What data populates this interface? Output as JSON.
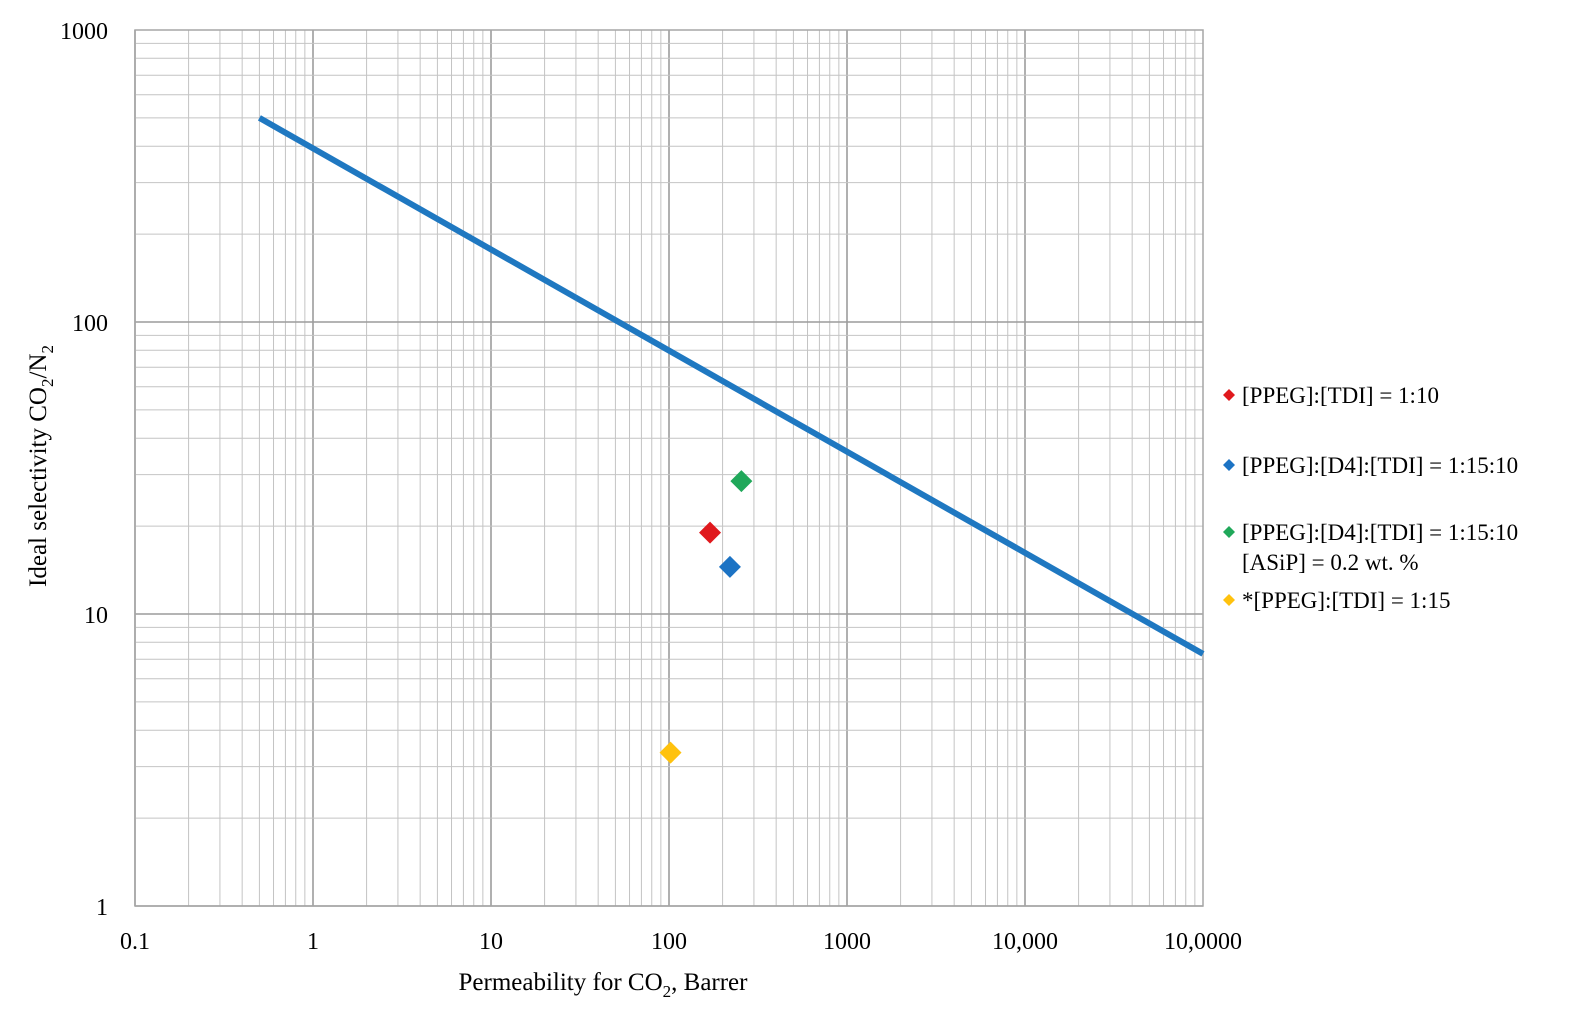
{
  "chart_data": {
    "type": "scatter",
    "title": "",
    "xlabel": {
      "prefix": "Permeability for CO",
      "sub": "2",
      "suffix": ", Barrer"
    },
    "ylabel": {
      "parts": [
        {
          "text": "Ideal selectivity CO",
          "sub": false
        },
        {
          "text": "2",
          "sub": true
        },
        {
          "text": "/N",
          "sub": false
        },
        {
          "text": "2",
          "sub": true
        }
      ]
    },
    "x_scale": "log",
    "y_scale": "log",
    "xlim": [
      0.1,
      100000
    ],
    "ylim": [
      1,
      1000
    ],
    "x_ticks": [
      {
        "value": 0.1,
        "label": "0.1"
      },
      {
        "value": 1,
        "label": "1"
      },
      {
        "value": 10,
        "label": "10"
      },
      {
        "value": 100,
        "label": "100"
      },
      {
        "value": 1000,
        "label": "1000"
      },
      {
        "value": 10000,
        "label": "10,000"
      },
      {
        "value": 100000,
        "label": "10,0000"
      }
    ],
    "y_ticks": [
      {
        "value": 1,
        "label": "1"
      },
      {
        "value": 10,
        "label": "10"
      },
      {
        "value": 100,
        "label": "100"
      },
      {
        "value": 1000,
        "label": "1000"
      }
    ],
    "grid": true,
    "upper_bound_line": {
      "color": "#1f78c1",
      "points": [
        {
          "x": 0.5,
          "y": 500
        },
        {
          "x": 100000,
          "y": 7.3
        }
      ]
    },
    "series": [
      {
        "name": "[PPEG]:[TDI] = 1:10",
        "color": "#e0191d",
        "points": [
          {
            "x": 170,
            "y": 19
          }
        ]
      },
      {
        "name": "[PPEG]:[D4]:[TDI] = 1:15:10",
        "color": "#1c73c4",
        "points": [
          {
            "x": 220,
            "y": 14.5
          }
        ]
      },
      {
        "name": "[PPEG]:[D4]:[TDI] = 1:15:10",
        "name_line2": "[ASiP] = 0.2 wt. %",
        "color": "#20a85a",
        "points": [
          {
            "x": 255,
            "y": 28.5
          }
        ]
      },
      {
        "name": "*[PPEG]:[TDI] = 1:15",
        "color": "#ffc20e",
        "points": [
          {
            "x": 102,
            "y": 3.35
          }
        ]
      }
    ],
    "legend_position": "right"
  }
}
